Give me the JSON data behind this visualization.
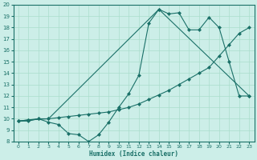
{
  "xlabel": "Humidex (Indice chaleur)",
  "xlim": [
    -0.5,
    23.5
  ],
  "ylim": [
    8,
    20
  ],
  "xticks": [
    0,
    1,
    2,
    3,
    4,
    5,
    6,
    7,
    8,
    9,
    10,
    11,
    12,
    13,
    14,
    15,
    16,
    17,
    18,
    19,
    20,
    21,
    22,
    23
  ],
  "yticks": [
    8,
    9,
    10,
    11,
    12,
    13,
    14,
    15,
    16,
    17,
    18,
    19,
    20
  ],
  "bg_color": "#cceee8",
  "line_color": "#1a7068",
  "grid_color": "#aaddcc",
  "series1_x": [
    0,
    1,
    2,
    3,
    4,
    5,
    6,
    7,
    8,
    9,
    10,
    11,
    12,
    13,
    14,
    15,
    16,
    17,
    18,
    19,
    20,
    21,
    22,
    23
  ],
  "series1_y": [
    9.8,
    9.8,
    10.0,
    9.7,
    9.5,
    8.7,
    8.6,
    8.0,
    8.6,
    9.7,
    11.0,
    12.2,
    13.8,
    18.4,
    19.6,
    19.2,
    19.3,
    17.8,
    17.8,
    18.9,
    18.0,
    15.0,
    12.0,
    12.0
  ],
  "series2_x": [
    0,
    1,
    2,
    3,
    4,
    5,
    6,
    7,
    8,
    9,
    10,
    11,
    12,
    13,
    14,
    15,
    16,
    17,
    18,
    19,
    20,
    21,
    22,
    23
  ],
  "series2_y": [
    9.8,
    9.9,
    10.0,
    10.0,
    10.1,
    10.2,
    10.3,
    10.4,
    10.5,
    10.6,
    10.8,
    11.0,
    11.3,
    11.7,
    12.1,
    12.5,
    13.0,
    13.5,
    14.0,
    14.5,
    15.5,
    16.5,
    17.5,
    18.0
  ],
  "series3_x": [
    0,
    1,
    3,
    14,
    23
  ],
  "series3_y": [
    9.8,
    9.9,
    10.0,
    19.6,
    12.0
  ]
}
